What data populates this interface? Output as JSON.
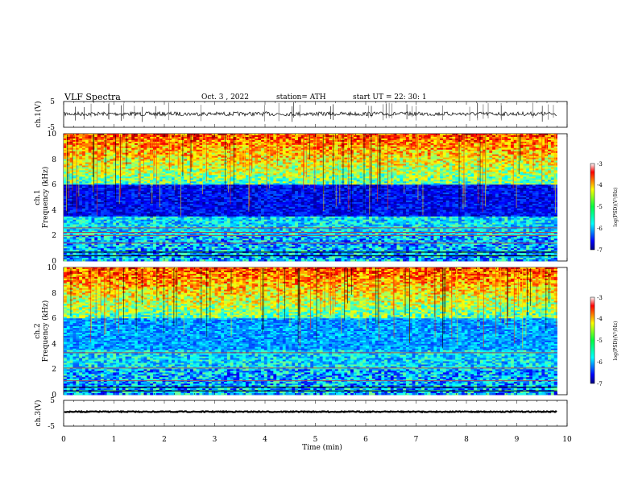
{
  "header": {
    "title": "VLF  Spectra",
    "date": "Oct. 3  , 2022",
    "station": "station= ATH",
    "start_ut": "start  UT  =    22: 30: 1"
  },
  "chart_data": [
    {
      "type": "line",
      "panel": "ch1-waveform",
      "ylabel": "ch.1(V)",
      "ylim": [
        -5,
        5
      ],
      "yticks": [
        "5",
        "-5"
      ],
      "xlim": [
        0,
        10
      ],
      "x_end": 9.8,
      "level": 0.2
    },
    {
      "type": "heatmap",
      "panel": "ch1-spectrogram",
      "ylabel_channel": "ch.1",
      "ylabel": "Frequency  (kHz)",
      "ylim": [
        0,
        10
      ],
      "yticks": [
        "0",
        "2",
        "4",
        "6",
        "8",
        "10"
      ],
      "xlim": [
        0,
        10
      ],
      "x_end": 9.8,
      "colorbar": {
        "label": "log(PSD)(V²/Hz)",
        "min": -7,
        "max": -3,
        "ticks": [
          "-3",
          "-4",
          "-5",
          "-6",
          "-7"
        ]
      }
    },
    {
      "type": "heatmap",
      "panel": "ch2-spectrogram",
      "ylabel_channel": "ch.2",
      "ylabel": "Frequency  (kHz)",
      "ylim": [
        0,
        10
      ],
      "yticks": [
        "0",
        "2",
        "4",
        "6",
        "8",
        "10"
      ],
      "xlim": [
        0,
        10
      ],
      "x_end": 9.8,
      "colorbar": {
        "label": "log(PSD)(V²/Hz)",
        "min": -7,
        "max": -3,
        "ticks": [
          "-3",
          "-4",
          "-5",
          "-6",
          "-7"
        ]
      }
    },
    {
      "type": "line",
      "panel": "ch3-waveform",
      "ylabel": "ch.3(V)",
      "ylim": [
        -5,
        5
      ],
      "yticks": [
        "5",
        "-5"
      ],
      "xlim": [
        0,
        10
      ],
      "x_end": 9.8,
      "level": 0.6
    }
  ],
  "xaxis": {
    "label": "Time  (min)",
    "ticks": [
      "0",
      "1",
      "2",
      "3",
      "4",
      "5",
      "6",
      "7",
      "8",
      "9",
      "10"
    ]
  }
}
